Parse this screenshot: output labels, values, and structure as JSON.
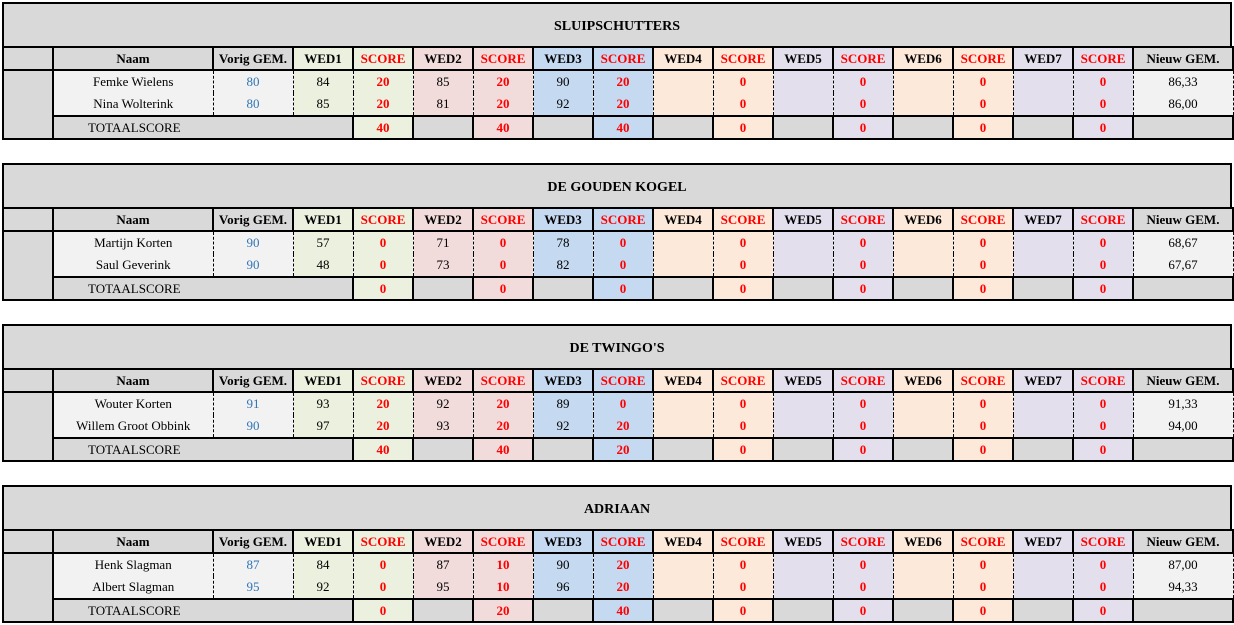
{
  "headers": {
    "naam": "Naam",
    "vorig": "Vorig GEM.",
    "weds": [
      "WED1",
      "WED2",
      "WED3",
      "WED4",
      "WED5",
      "WED6",
      "WED7"
    ],
    "score": "SCORE",
    "nieuw": "Nieuw GEM.",
    "total_label": "TOTAALSCORE"
  },
  "colors": {
    "wed1": "#ebf1de",
    "wed2": "#f2dcdb",
    "wed3": "#c5d9f1",
    "wed4": "#fde9d9",
    "wed5": "#e4dfec",
    "wed6": "#fde9d9",
    "wed7": "#e4dfec",
    "score_text": "#ff0000",
    "vorig_text": "#2f75b5"
  },
  "teams": [
    {
      "name": "SLUIPSCHUTTERS",
      "players": [
        {
          "naam": "Femke Wielens",
          "vorig": "80",
          "wed": [
            "84",
            "85",
            "90",
            "",
            "",
            "",
            ""
          ],
          "score": [
            "20",
            "20",
            "20",
            "0",
            "0",
            "0",
            "0"
          ],
          "nieuw": "86,33"
        },
        {
          "naam": "Nina Wolterink",
          "vorig": "80",
          "wed": [
            "85",
            "81",
            "92",
            "",
            "",
            "",
            ""
          ],
          "score": [
            "20",
            "20",
            "20",
            "0",
            "0",
            "0",
            "0"
          ],
          "nieuw": "86,00"
        }
      ],
      "totals": [
        "40",
        "40",
        "40",
        "0",
        "0",
        "0",
        "0"
      ]
    },
    {
      "name": "DE GOUDEN KOGEL",
      "players": [
        {
          "naam": "Martijn Korten",
          "vorig": "90",
          "wed": [
            "57",
            "71",
            "78",
            "",
            "",
            "",
            ""
          ],
          "score": [
            "0",
            "0",
            "0",
            "0",
            "0",
            "0",
            "0"
          ],
          "nieuw": "68,67"
        },
        {
          "naam": "Saul Geverink",
          "vorig": "90",
          "wed": [
            "48",
            "73",
            "82",
            "",
            "",
            "",
            ""
          ],
          "score": [
            "0",
            "0",
            "0",
            "0",
            "0",
            "0",
            "0"
          ],
          "nieuw": "67,67"
        }
      ],
      "totals": [
        "0",
        "0",
        "0",
        "0",
        "0",
        "0",
        "0"
      ]
    },
    {
      "name": "DE TWINGO'S",
      "players": [
        {
          "naam": "Wouter Korten",
          "vorig": "91",
          "wed": [
            "93",
            "92",
            "89",
            "",
            "",
            "",
            ""
          ],
          "score": [
            "20",
            "20",
            "0",
            "0",
            "0",
            "0",
            "0"
          ],
          "nieuw": "91,33"
        },
        {
          "naam": "Willem Groot Obbink",
          "vorig": "90",
          "wed": [
            "97",
            "93",
            "92",
            "",
            "",
            "",
            ""
          ],
          "score": [
            "20",
            "20",
            "20",
            "0",
            "0",
            "0",
            "0"
          ],
          "nieuw": "94,00"
        }
      ],
      "totals": [
        "40",
        "40",
        "20",
        "0",
        "0",
        "0",
        "0"
      ]
    },
    {
      "name": "ADRIAAN",
      "players": [
        {
          "naam": "Henk Slagman",
          "vorig": "87",
          "wed": [
            "84",
            "87",
            "90",
            "",
            "",
            "",
            ""
          ],
          "score": [
            "0",
            "10",
            "20",
            "0",
            "0",
            "0",
            "0"
          ],
          "nieuw": "87,00"
        },
        {
          "naam": "Albert Slagman",
          "vorig": "95",
          "wed": [
            "92",
            "95",
            "96",
            "",
            "",
            "",
            ""
          ],
          "score": [
            "0",
            "10",
            "20",
            "0",
            "0",
            "0",
            "0"
          ],
          "nieuw": "94,33"
        }
      ],
      "totals": [
        "0",
        "20",
        "40",
        "0",
        "0",
        "0",
        "0"
      ]
    }
  ]
}
